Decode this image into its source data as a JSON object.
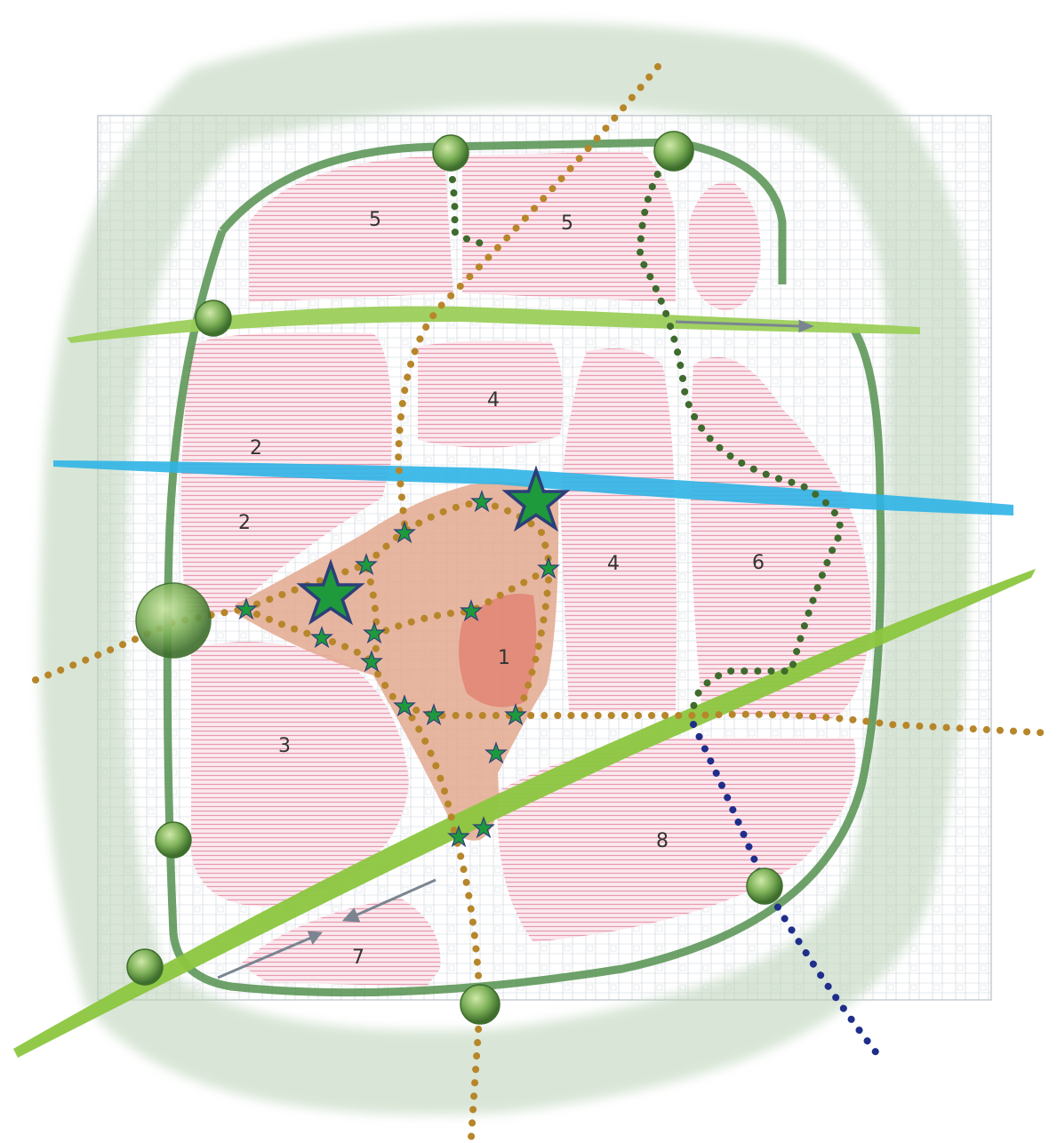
{
  "zones": [
    {
      "id": "z5a",
      "label": "5"
    },
    {
      "id": "z5b",
      "label": "5"
    },
    {
      "id": "z4a",
      "label": "4"
    },
    {
      "id": "z2a",
      "label": "2"
    },
    {
      "id": "z2b",
      "label": "2"
    },
    {
      "id": "z4b",
      "label": "4"
    },
    {
      "id": "z6",
      "label": "6"
    },
    {
      "id": "z1",
      "label": "1"
    },
    {
      "id": "z3",
      "label": "3"
    },
    {
      "id": "z8",
      "label": "8"
    },
    {
      "id": "z7",
      "label": "7"
    }
  ],
  "legend_colors": {
    "residential_hatch": "#e9a3b3",
    "center_fill": "#d98a6a",
    "core_fill": "#e06050",
    "green_belt": "#5f9a5f",
    "green_corridor": "#8cc63f",
    "water": "#2fb4e6",
    "ochre_route": "#b7862a",
    "dark_green_route": "#3f6b2e",
    "blue_route": "#1f2e8a",
    "star": "#1e9a3c"
  }
}
